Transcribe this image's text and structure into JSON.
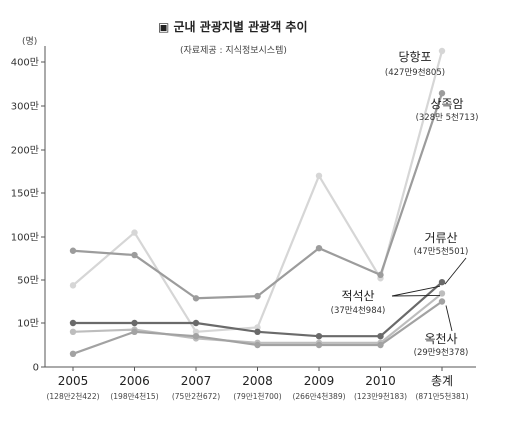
{
  "chart_data": {
    "type": "line",
    "title": "▣ 군내 관광지별 관광객 추이",
    "subtitle": "(자료제공 : 지식정보시스템)",
    "y_unit": "(명)",
    "ylim": [
      0,
      4250000
    ],
    "y_ticks": [
      {
        "value": 0,
        "label": "0"
      },
      {
        "value": 100000,
        "label": "10만"
      },
      {
        "value": 500000,
        "label": "50만"
      },
      {
        "value": 1000000,
        "label": "100만"
      },
      {
        "value": 1500000,
        "label": "150만"
      },
      {
        "value": 2000000,
        "label": "200만"
      },
      {
        "value": 3000000,
        "label": "300만"
      },
      {
        "value": 4000000,
        "label": "400만"
      }
    ],
    "categories": [
      "2005",
      "2006",
      "2007",
      "2008",
      "2009",
      "2010",
      "총계"
    ],
    "category_totals": [
      "(128만2천422)",
      "(198만4천15)",
      "(75만2천672)",
      "(79만1천700)",
      "(266만4천389)",
      "(123만9천183)",
      "(871만5천381)"
    ],
    "grid": false,
    "series": [
      {
        "name": "당항포",
        "total_label": "(427만9천805)",
        "color": "#d6d6d6",
        "values": [
          450000,
          1050000,
          80000,
          90000,
          1700000,
          520000,
          4280000
        ]
      },
      {
        "name": "상족암",
        "total_label": "(328만 5천713)",
        "color": "#9c9c9c",
        "values": [
          840000,
          790000,
          330000,
          350000,
          870000,
          560000,
          3290000
        ]
      },
      {
        "name": "거류산",
        "total_label": "(47만5천501)",
        "color": "#6a6a6a",
        "values": [
          100000,
          100000,
          100000,
          80000,
          70000,
          70000,
          480000
        ]
      },
      {
        "name": "적석산",
        "total_label": "(37만4천984)",
        "color": "#bdbdbd",
        "values": [
          80000,
          85000,
          65000,
          55000,
          55000,
          55000,
          375000
        ]
      },
      {
        "name": "옥천사",
        "total_label": "(29만9천378)",
        "color": "#a2a2a2",
        "values": [
          30000,
          80000,
          70000,
          50000,
          50000,
          50000,
          300000
        ]
      }
    ]
  }
}
